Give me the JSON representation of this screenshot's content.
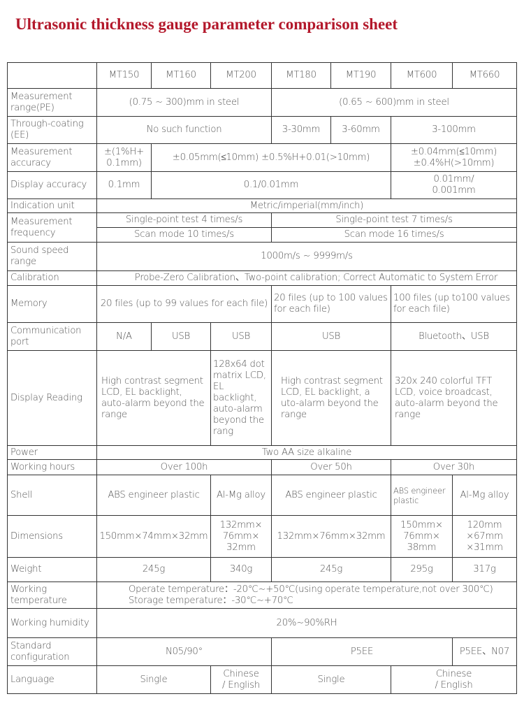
{
  "title": "Ultrasonic thickness gauge parameter comparison sheet",
  "models": [
    "MT150",
    "MT160",
    "MT200",
    "MT180",
    "MT190",
    "MT600",
    "MT660"
  ],
  "rows": {
    "range": {
      "label": "Measurement range(PE)",
      "a": "(0.75 ~ 300)mm in steel",
      "b": "(0.65 ~ 600)mm in steel"
    },
    "coating": {
      "label": "Through-coating (EE)",
      "a": "No such function",
      "b": "3-30mm",
      "c": "3-60mm",
      "d": "3-100mm"
    },
    "accuracy": {
      "label": "Measurement accuracy",
      "a": "±(1%H+\n0.1mm)",
      "b": "±0.05mm(≤10mm)      ±0.5%H+0.01(>10mm)",
      "c": "±0.04mm(≤10mm)\n±0.4%H(>10mm)"
    },
    "display_acc": {
      "label": "Display accuracy",
      "a": "0.1mm",
      "b": "0.1/0.01mm",
      "c": "0.01mm/\n0.001mm"
    },
    "unit": {
      "label": "Indication unit",
      "a": "Metric/imperial(mm/inch)"
    },
    "freq": {
      "label": "Measurement frequency",
      "a": "Single-point test 4 times/s",
      "b": "Single-point test 7 times/s",
      "c": "Scan mode 10 times/s",
      "d": "Scan mode 16 times/s"
    },
    "sound": {
      "label": "Sound speed range",
      "a": "1000m/s ~ 9999m/s"
    },
    "calibration": {
      "label": "Calibration",
      "a": "Probe-Zero Calibration、Two-point calibration; Correct Automatic to System Error"
    },
    "memory": {
      "label": "Memory",
      "a": "20 files (up to 99 values for each file)",
      "b": "20 files (up to 100 values for each file)",
      "c": "100 files (up to100 values for each file)"
    },
    "comm": {
      "label": "Communication port",
      "a": "N/A",
      "b": "USB",
      "c": "USB",
      "d": "USB",
      "e": "Bluetooth、USB"
    },
    "display_reading": {
      "label": "Display Reading",
      "a": "High contrast segment LCD, EL backlight, auto-alarm beyond the range",
      "b": "128x64 dot matrix LCD, EL backlight, auto-alarm beyond the rang",
      "c": "High contrast segment LCD, EL backlight, a uto-alarm beyond the range",
      "d": "320x 240 colorful TFT LCD, voice broadcast, auto-alarm beyond the range"
    },
    "power": {
      "label": "Power",
      "a": "Two AA size alkaline"
    },
    "hours": {
      "label": "Working hours",
      "a": "Over 100h",
      "b": "Over 50h",
      "c": "Over 30h"
    },
    "shell": {
      "label": "Shell",
      "a": "ABS engineer plastic",
      "b": "Al-Mg alloy",
      "c": "ABS engineer plastic",
      "d": "ABS engineer plastic",
      "e": "Al-Mg alloy"
    },
    "dimensions": {
      "label": "Dimensions",
      "a": "150mm×74mm×32mm",
      "b": "132mm×\n76mm×\n32mm",
      "c": "132mm×76mm×32mm",
      "d": "150mm×\n76mm×\n38mm",
      "e": "120mm\n×67mm\n×31mm"
    },
    "weight": {
      "label": "Weight",
      "a": "245g",
      "b": "340g",
      "c": "245g",
      "d": "295g",
      "e": "317g"
    },
    "temperature": {
      "label": "Working temperature",
      "a": "Operate temperature：-20℃~+50℃(using operate temperature,not over 300℃)",
      "b": "Storage temperature：-30℃~+70℃"
    },
    "humidity": {
      "label": "Working humidity",
      "a": "20%~90%RH"
    },
    "config": {
      "label": "Standard configuration",
      "a": "N05/90°",
      "b": "P5EE",
      "c": "P5EE、N07"
    },
    "language": {
      "label": "Language",
      "a": "Single",
      "b": "Chinese\n/ English",
      "c": "Single",
      "d": "Chinese\n/ English"
    }
  }
}
